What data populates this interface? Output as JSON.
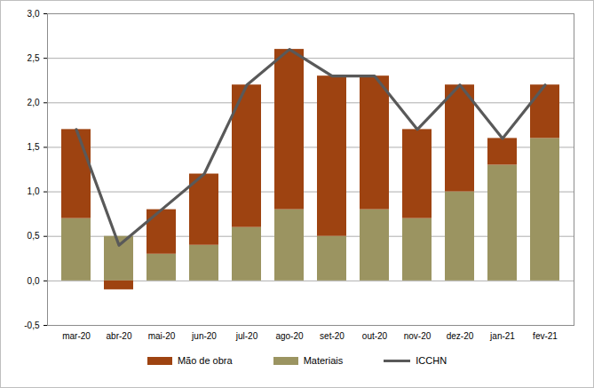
{
  "chart_data": {
    "type": "bar",
    "stacked": true,
    "grid": true,
    "legend": "bottom",
    "categories": [
      "mar-20",
      "abr-20",
      "mai-20",
      "jun-20",
      "jul-20",
      "ago-20",
      "set-20",
      "out-20",
      "nov-20",
      "dez-20",
      "jan-21",
      "fev-21"
    ],
    "series": [
      {
        "name": "Mão de obra",
        "type": "bar",
        "color": "#9e4311",
        "values": [
          1.0,
          -0.1,
          0.5,
          0.8,
          1.6,
          1.8,
          1.8,
          1.5,
          1.0,
          1.2,
          0.3,
          0.6
        ]
      },
      {
        "name": "Materiais",
        "type": "bar",
        "color": "#9b9461",
        "values": [
          0.7,
          0.5,
          0.3,
          0.4,
          0.6,
          0.8,
          0.5,
          0.8,
          0.7,
          1.0,
          1.3,
          1.6
        ]
      },
      {
        "name": "ICCHN",
        "type": "line",
        "color": "#595959",
        "values": [
          1.7,
          0.4,
          0.8,
          1.2,
          2.2,
          2.6,
          2.3,
          2.3,
          1.7,
          2.2,
          1.6,
          2.2
        ]
      }
    ],
    "ylim": [
      -0.5,
      3.0
    ],
    "yticks": [
      {
        "value": -0.5,
        "label": "-0,5"
      },
      {
        "value": 0.0,
        "label": "0,0"
      },
      {
        "value": 0.5,
        "label": "0,5"
      },
      {
        "value": 1.0,
        "label": "1,0"
      },
      {
        "value": 1.5,
        "label": "1,5"
      },
      {
        "value": 2.0,
        "label": "2,0"
      },
      {
        "value": 2.5,
        "label": "2,5"
      },
      {
        "value": 3.0,
        "label": "3,0"
      }
    ]
  }
}
